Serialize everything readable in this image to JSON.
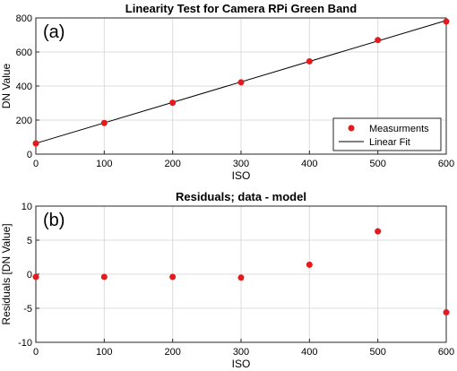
{
  "chart_data": [
    {
      "type": "scatter",
      "panel_label": "(a)",
      "title": "Linearity Test for Camera RPi Green Band",
      "xlabel": "ISO",
      "ylabel": "DN Value",
      "xlim": [
        0,
        600
      ],
      "ylim": [
        0,
        800
      ],
      "xticks": [
        0,
        100,
        200,
        300,
        400,
        500,
        600
      ],
      "yticks": [
        0,
        200,
        400,
        600,
        800
      ],
      "grid": true,
      "legend_position": "bottom-right",
      "series": [
        {
          "name": "Measurments",
          "kind": "markers",
          "color": "#e41a1c",
          "x": [
            0,
            100,
            200,
            300,
            400,
            500,
            600
          ],
          "y": [
            63,
            183,
            302,
            422,
            545,
            670,
            779
          ]
        },
        {
          "name": "Linear Fit",
          "kind": "line",
          "color": "#000000",
          "x": [
            0,
            600
          ],
          "y": [
            63.5,
            785
          ]
        }
      ]
    },
    {
      "type": "scatter",
      "panel_label": "(b)",
      "title": "Residuals; data - model",
      "xlabel": "ISO",
      "ylabel": "Residuals [DN Value]",
      "xlim": [
        0,
        600
      ],
      "ylim": [
        -10,
        10
      ],
      "xticks": [
        0,
        100,
        200,
        300,
        400,
        500,
        600
      ],
      "yticks": [
        -10,
        -5,
        0,
        5,
        10
      ],
      "grid": true,
      "series": [
        {
          "kind": "markers",
          "color": "#e41a1c",
          "x": [
            0,
            100,
            200,
            300,
            400,
            500,
            600
          ],
          "y": [
            -0.4,
            -0.4,
            -0.4,
            -0.5,
            1.4,
            6.3,
            -5.6
          ]
        }
      ]
    }
  ]
}
